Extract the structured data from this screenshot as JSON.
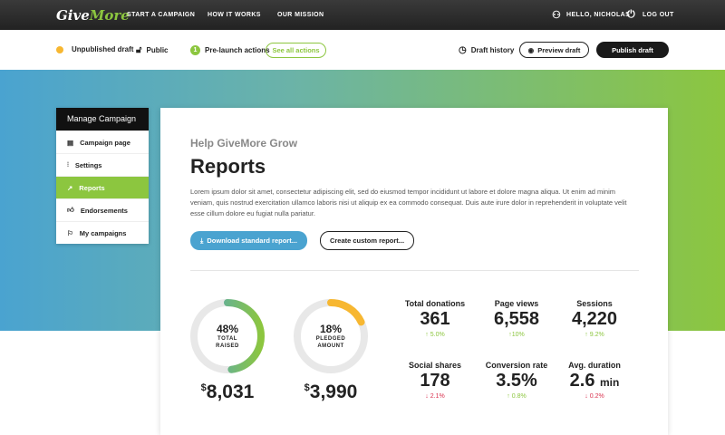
{
  "header": {
    "logo_give": "Give",
    "logo_more": "More",
    "nav": [
      "START A CAMPAIGN",
      "HOW IT WORKS",
      "OUR MISSION"
    ],
    "greeting": "HELLO, NICHOLAS",
    "logout": "LOG OUT"
  },
  "subbar": {
    "status": "Unpublished draft",
    "visibility": "Public",
    "prelaunch_count": "1",
    "prelaunch": "Pre-launch actions",
    "see_all": "See all actions",
    "history": "Draft history",
    "preview": "Preview draft",
    "publish": "Publish draft"
  },
  "sidebar": {
    "title": "Manage Campaign",
    "items": [
      {
        "label": "Campaign page"
      },
      {
        "label": "Settings"
      },
      {
        "label": "Reports"
      },
      {
        "label": "Endorsements"
      },
      {
        "label": "My campaigns"
      }
    ]
  },
  "main": {
    "subtitle": "Help GiveMore Grow",
    "title": "Reports",
    "body": "Lorem ipsum dolor sit amet, consectetur adipiscing elit, sed do eiusmod tempor incididunt ut labore et dolore magna aliqua. Ut enim ad minim veniam, quis nostrud exercitation ullamco laboris nisi ut aliquip ex ea commodo consequat. Duis aute irure dolor in reprehenderit in voluptate velit esse cillum dolore eu fugiat nulla pariatur.",
    "download": "Download standard report...",
    "custom": "Create custom report..."
  },
  "donuts": [
    {
      "pct": "48%",
      "fraction": 0.48,
      "l1": "TOTAL",
      "l2": "RAISED",
      "currency": "$",
      "amount": "8,031"
    },
    {
      "pct": "18%",
      "fraction": 0.18,
      "l1": "PLEDGED",
      "l2": "AMOUNT",
      "currency": "$",
      "amount": "3,990"
    }
  ],
  "stats": [
    {
      "label": "Total donations",
      "value": "361",
      "unit": "",
      "delta": "↑ 5.0%",
      "dir": "up"
    },
    {
      "label": "Page views",
      "value": "6,558",
      "unit": "",
      "delta": "↑10%",
      "dir": "up"
    },
    {
      "label": "Sessions",
      "value": "4,220",
      "unit": "",
      "delta": "↑ 9.2%",
      "dir": "up"
    },
    {
      "label": "Social shares",
      "value": "178",
      "unit": "",
      "delta": "↓ 2.1%",
      "dir": "down"
    },
    {
      "label": "Conversion rate",
      "value": "3.5%",
      "unit": "",
      "delta": "↑ 0.8%",
      "dir": "up"
    },
    {
      "label": "Avg. duration",
      "value": "2.6",
      "unit": "min",
      "delta": "↓ 0.2%",
      "dir": "down"
    }
  ],
  "colors": {
    "green": "#8cc63f",
    "blue": "#4aa3d0",
    "orange": "#f7b731",
    "red": "#d9314e"
  }
}
